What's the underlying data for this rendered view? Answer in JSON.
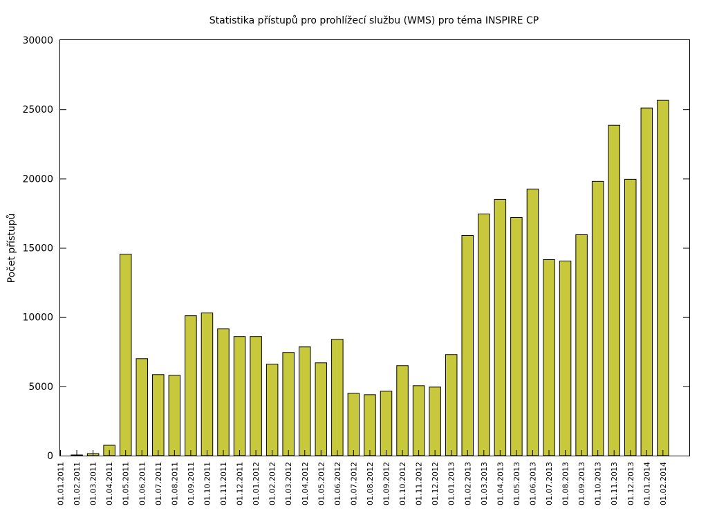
{
  "chart_data": {
    "type": "bar",
    "title": "Statistika přístupů pro prohlížecí službu (WMS) pro téma INSPIRE CP",
    "xlabel": "",
    "ylabel": "Počet přístupů",
    "ylim": [
      0,
      30000
    ],
    "yticks": [
      "0",
      "5000",
      "10000",
      "15000",
      "20000",
      "25000",
      "30000"
    ],
    "bar_color": "#c8c83c",
    "grid": false,
    "categories": [
      "01.01.2011",
      "01.02.2011",
      "01.03.2011",
      "01.04.2011",
      "01.05.2011",
      "01.06.2011",
      "01.07.2011",
      "01.08.2011",
      "01.09.2011",
      "01.10.2011",
      "01.11.2011",
      "01.12.2011",
      "01.01.2012",
      "01.02.2012",
      "01.03.2012",
      "01.04.2012",
      "01.05.2012",
      "01.06.2012",
      "01.07.2012",
      "01.08.2012",
      "01.09.2012",
      "01.10.2012",
      "01.11.2012",
      "01.12.2012",
      "01.01.2013",
      "01.02.2013",
      "01.03.2013",
      "01.04.2013",
      "01.05.2013",
      "01.06.2013",
      "01.07.2013",
      "01.08.2013",
      "01.09.2013",
      "01.10.2013",
      "01.11.2013",
      "01.12.2013",
      "01.01.2014",
      "01.02.2014"
    ],
    "values": [
      0,
      50,
      150,
      750,
      14550,
      7000,
      5850,
      5800,
      10100,
      10300,
      9150,
      8600,
      8600,
      6600,
      7450,
      7850,
      6700,
      8400,
      4500,
      4400,
      4650,
      6500,
      5050,
      4950,
      7300,
      15900,
      17450,
      18500,
      17200,
      19250,
      14150,
      14050,
      15950,
      19800,
      23850,
      19950,
      25100,
      25650
    ]
  }
}
